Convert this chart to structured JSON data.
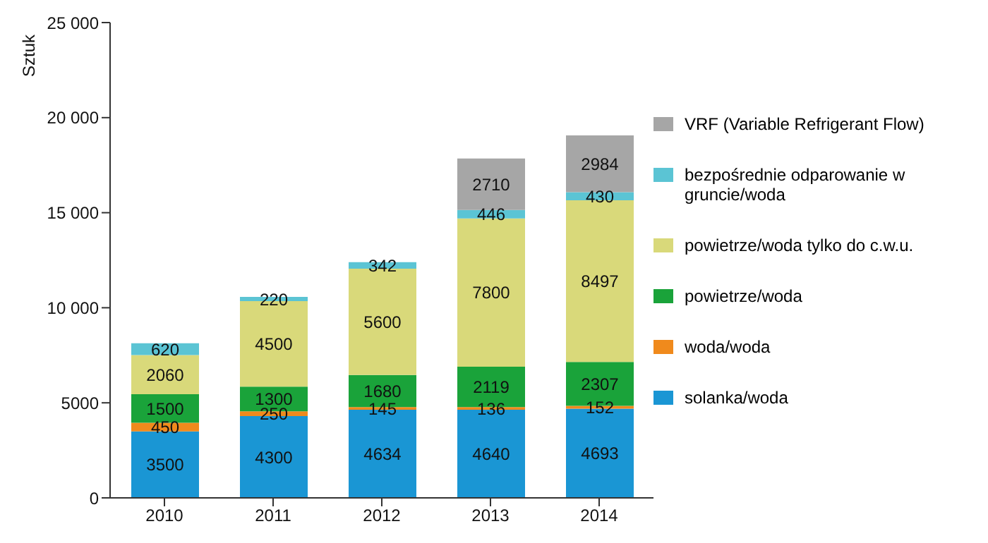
{
  "chart_data": {
    "type": "bar",
    "stacked": true,
    "ylabel": "Sztuk",
    "categories": [
      "2010",
      "2011",
      "2012",
      "2013",
      "2014"
    ],
    "series": [
      {
        "name": "solanka/woda",
        "color": "#1a96d4",
        "values": [
          3500,
          4300,
          4634,
          4640,
          4693
        ]
      },
      {
        "name": "woda/woda",
        "color": "#f08a1c",
        "values": [
          450,
          250,
          145,
          136,
          152
        ]
      },
      {
        "name": "powietrze/woda",
        "color": "#1aa33a",
        "values": [
          1500,
          1300,
          1680,
          2119,
          2307
        ]
      },
      {
        "name": "powietrze/woda tylko do c.w.u.",
        "color": "#d9d97a",
        "values": [
          2060,
          4500,
          5600,
          7800,
          8497
        ]
      },
      {
        "name": "bezpośrednie odparowanie w gruncie/woda",
        "color": "#5bc4d4",
        "values": [
          620,
          220,
          342,
          446,
          430
        ]
      },
      {
        "name": "VRF (Variable Refrigerant Flow)",
        "color": "#a6a6a6",
        "values": [
          null,
          null,
          null,
          2710,
          2984
        ]
      }
    ],
    "ylim": [
      0,
      25000
    ],
    "yticks": [
      0,
      5000,
      {
        "value": 10000,
        "label": "10 000"
      },
      {
        "value": 15000,
        "label": "15 000"
      },
      {
        "value": 20000,
        "label": "20 000"
      },
      {
        "value": 25000,
        "label": "25 000"
      }
    ],
    "data_labels": true,
    "legend": "right",
    "grid": false
  }
}
